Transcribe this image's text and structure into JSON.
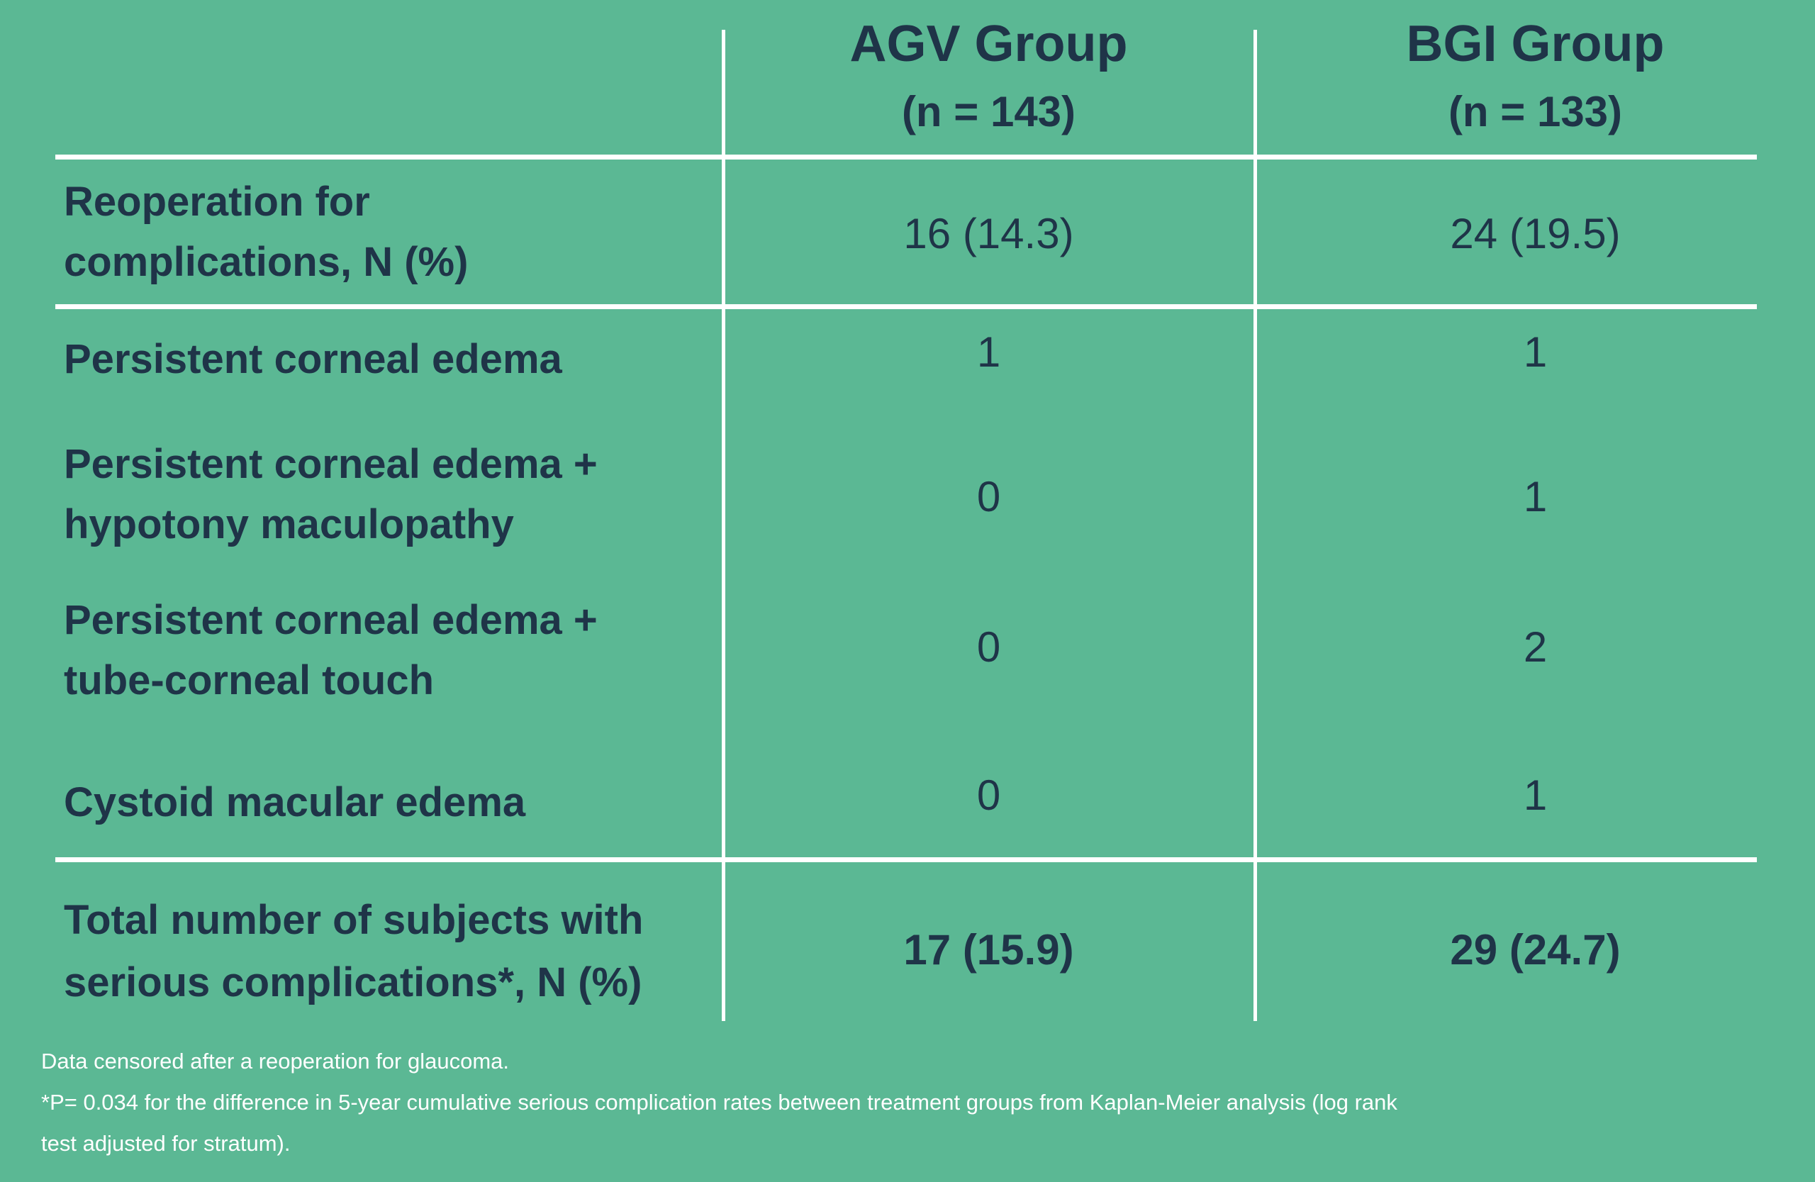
{
  "colors": {
    "background": "#5bb894",
    "text": "#1f3448",
    "divider": "#ffffff",
    "footnote_text": "#ffffff"
  },
  "table": {
    "columns": [
      {
        "title": "AGV Group",
        "subtitle": "(n = 143)"
      },
      {
        "title": "BGI Group",
        "subtitle": "(n = 133)"
      }
    ],
    "rows": [
      {
        "label_line1": "Reoperation for",
        "label_line2": "complications, N (%)",
        "agv": "16 (14.3)",
        "bgi": "24 (19.5)"
      },
      {
        "label_line1": "Persistent corneal edema",
        "label_line2": "",
        "agv": "1",
        "bgi": "1"
      },
      {
        "label_line1": "Persistent corneal edema +",
        "label_line2": "hypotony maculopathy",
        "agv": "0",
        "bgi": "1"
      },
      {
        "label_line1": "Persistent corneal edema +",
        "label_line2": "tube-corneal touch",
        "agv": "0",
        "bgi": "2"
      },
      {
        "label_line1": "Cystoid macular edema",
        "label_line2": "",
        "agv": "0",
        "bgi": "1"
      },
      {
        "label_line1": "Total number of subjects with",
        "label_line2": "serious complications*, N (%)",
        "agv": "17 (15.9)",
        "bgi": "29 (24.7)"
      }
    ]
  },
  "footnotes": {
    "line1": "Data censored after a reoperation for glaucoma.",
    "line2": "*P= 0.034 for the difference in 5-year cumulative serious complication rates between treatment groups from Kaplan-Meier analysis (log rank",
    "line3": "test adjusted for stratum)."
  },
  "chart_data": {
    "type": "table",
    "title": "",
    "columns": [
      "",
      "AGV Group (n = 143)",
      "BGI Group (n = 133)"
    ],
    "rows": [
      [
        "Reoperation for complications, N (%)",
        "16 (14.3)",
        "24 (19.5)"
      ],
      [
        "Persistent corneal edema",
        "1",
        "1"
      ],
      [
        "Persistent corneal edema + hypotony maculopathy",
        "0",
        "1"
      ],
      [
        "Persistent corneal edema + tube-corneal touch",
        "0",
        "2"
      ],
      [
        "Cystoid macular edema",
        "0",
        "1"
      ],
      [
        "Total number of subjects with serious complications*, N (%)",
        "17 (15.9)",
        "29 (24.7)"
      ]
    ],
    "footnotes": [
      "Data censored after a reoperation for glaucoma.",
      "*P= 0.034 for the difference in 5-year cumulative serious complication rates between treatment groups from Kaplan-Meier analysis (log rank test adjusted for stratum)."
    ]
  }
}
